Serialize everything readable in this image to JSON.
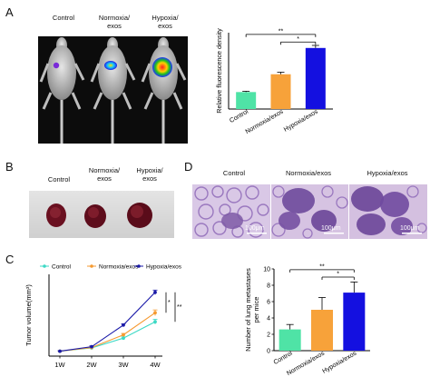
{
  "panels": {
    "A": "A",
    "B": "B",
    "C": "C",
    "D": "D"
  },
  "panelA": {
    "group_labels": [
      "Control",
      "Normoxia/\nexos",
      "Hypoxia/\nexos"
    ]
  },
  "panelB": {
    "group_labels": [
      "Control",
      "Normoxia/\nexos",
      "Hypoxia/\nexos"
    ]
  },
  "panelD": {
    "group_labels": [
      "Control",
      "Normoxia/exos",
      "Hypoxia/exos"
    ],
    "scale_bar_label": "100μm"
  },
  "colors": {
    "control": "#4fe3a6",
    "normoxia": "#f7a23a",
    "hypoxia": "#1410e0",
    "line_control": "#3cd9c5",
    "line_normoxia": "#f59a30",
    "line_hypoxia": "#1a1aa8"
  },
  "chart_data": [
    {
      "id": "fluorescence",
      "type": "bar",
      "categories": [
        "Control",
        "Normoxia/exos",
        "Hypoxia/exos"
      ],
      "values": [
        1.0,
        2.05,
        3.6
      ],
      "errors": [
        0.05,
        0.12,
        0.15
      ],
      "ylabel": "Relative fluorescence density",
      "ylim": [
        0,
        4.5
      ],
      "significance": [
        {
          "from": 0,
          "to": 2,
          "label": "**"
        },
        {
          "from": 1,
          "to": 2,
          "label": "*"
        }
      ]
    },
    {
      "id": "tumor_volume",
      "type": "line",
      "categories": [
        "1W",
        "2W",
        "3W",
        "4W"
      ],
      "ylabel": "Tumor volume(mm³)",
      "ylim": [
        0,
        2000
      ],
      "legend_position": "top",
      "series": [
        {
          "name": "Control",
          "values": [
            120,
            200,
            440,
            840
          ],
          "errors": [
            10,
            20,
            30,
            60
          ]
        },
        {
          "name": "Normoxia/exos",
          "values": [
            120,
            210,
            520,
            1060
          ],
          "errors": [
            10,
            20,
            35,
            70
          ]
        },
        {
          "name": "Hypoxia/exos",
          "values": [
            120,
            230,
            760,
            1560
          ],
          "errors": [
            10,
            20,
            30,
            55
          ]
        }
      ],
      "significance": [
        {
          "label": "*"
        },
        {
          "label": "**"
        }
      ]
    },
    {
      "id": "metastases",
      "type": "bar",
      "categories": [
        "Control",
        "Normoxia/exos",
        "Hypoxia/exos"
      ],
      "values": [
        2.6,
        5.0,
        7.1
      ],
      "errors": [
        0.6,
        1.5,
        1.3
      ],
      "ylabel": "Number of lung metastases\nper mice",
      "ylim": [
        0,
        10
      ],
      "yticks": [
        0,
        2,
        4,
        6,
        8,
        10
      ],
      "significance": [
        {
          "from": 0,
          "to": 2,
          "label": "**"
        },
        {
          "from": 1,
          "to": 2,
          "label": "*"
        }
      ]
    }
  ]
}
